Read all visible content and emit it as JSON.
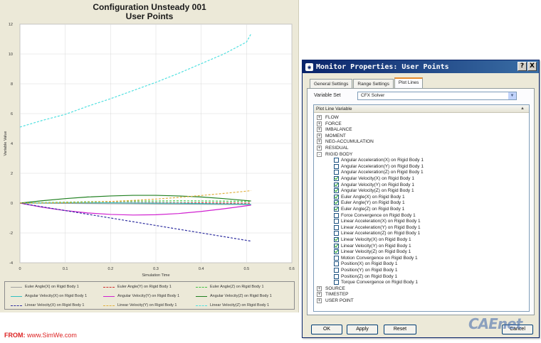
{
  "chart_data": {
    "type": "line",
    "title": "Configuration Unsteady 001",
    "subtitle": "User Points",
    "xlabel": "Simulation Time",
    "ylabel": "Variable Value",
    "xlim": [
      0,
      0.6
    ],
    "ylim": [
      -4,
      12
    ],
    "xticks": [
      "0",
      "0.1",
      "0.2",
      "0.3",
      "0.4",
      "0.5",
      "0.6"
    ],
    "yticks": [
      "-4",
      "-2",
      "0",
      "2",
      "4",
      "6",
      "8",
      "10",
      "12"
    ],
    "x": [
      0,
      0.05,
      0.1,
      0.15,
      0.2,
      0.25,
      0.3,
      0.35,
      0.4,
      0.45,
      0.5,
      0.51
    ],
    "series": [
      {
        "name": "Euler Angle(X) on Rigid Body 1",
        "color": "#a0a0a0",
        "dash": false,
        "values": [
          0,
          -0.01,
          -0.02,
          -0.03,
          -0.04,
          -0.05,
          -0.06,
          -0.07,
          -0.08,
          -0.09,
          -0.1,
          -0.1
        ]
      },
      {
        "name": "Euler Angle(Y) on Rigid Body 1",
        "color": "#d03030",
        "dash": true,
        "values": [
          0,
          0.01,
          0.02,
          0.02,
          0.03,
          0.03,
          0.03,
          0.02,
          0.02,
          0.01,
          0.0,
          0.0
        ]
      },
      {
        "name": "Euler Angle(Z) on Rigid Body 1",
        "color": "#40c040",
        "dash": true,
        "values": [
          0,
          0.03,
          0.06,
          0.09,
          0.11,
          0.13,
          0.14,
          0.15,
          0.14,
          0.13,
          0.12,
          0.12
        ]
      },
      {
        "name": "Angular Velocity(X) on Rigid Body 1",
        "color": "#30c0c0",
        "dash": false,
        "values": [
          0,
          0.01,
          0.02,
          0.02,
          0.02,
          0.01,
          0.0,
          -0.01,
          -0.03,
          -0.05,
          -0.07,
          -0.08
        ]
      },
      {
        "name": "Angular Velocity(Y) on Rigid Body 1",
        "color": "#d020d0",
        "dash": false,
        "values": [
          0,
          -0.28,
          -0.5,
          -0.66,
          -0.76,
          -0.8,
          -0.78,
          -0.7,
          -0.56,
          -0.38,
          -0.18,
          -0.14
        ]
      },
      {
        "name": "Angular Velocity(Z) on Rigid Body 1",
        "color": "#208020",
        "dash": false,
        "values": [
          0,
          0.16,
          0.3,
          0.41,
          0.48,
          0.52,
          0.52,
          0.48,
          0.41,
          0.3,
          0.17,
          0.14
        ]
      },
      {
        "name": "Linear Velocity(X) on Rigid Body 1",
        "color": "#3030a0",
        "dash": true,
        "values": [
          0,
          -0.25,
          -0.5,
          -0.75,
          -1.0,
          -1.25,
          -1.5,
          -1.75,
          -2.0,
          -2.25,
          -2.5,
          -2.55
        ]
      },
      {
        "name": "Linear Velocity(Y) on Rigid Body 1",
        "color": "#e0b040",
        "dash": true,
        "values": [
          0,
          0.01,
          0.03,
          0.06,
          0.11,
          0.18,
          0.27,
          0.38,
          0.51,
          0.65,
          0.8,
          0.84
        ]
      },
      {
        "name": "Linear Velocity(Z) on Rigid Body 1",
        "color": "#50e0e0",
        "dash": true,
        "values": [
          5.1,
          5.55,
          5.95,
          6.5,
          7.0,
          7.55,
          8.1,
          8.7,
          9.35,
          10.0,
          10.8,
          11.35
        ]
      }
    ]
  },
  "source": {
    "prefix": "FROM: ",
    "site": "www.SimWe.com"
  },
  "dialog": {
    "title": "Monitor Properties: User Points",
    "help_label": "?",
    "close_label": "X",
    "tabs": [
      "General Settings",
      "Range Settings",
      "Plot Lines"
    ],
    "variable_set_label": "Variable Set",
    "variable_set_value": "CFX Solver",
    "tree_header": "Plot Line Variable",
    "groups": [
      {
        "label": "FLOW",
        "expander": "+"
      },
      {
        "label": "FORCE",
        "expander": "+"
      },
      {
        "label": "IMBALANCE",
        "expander": "+"
      },
      {
        "label": "MOMENT",
        "expander": "+"
      },
      {
        "label": "NEG-ACCUMULATION",
        "expander": "+"
      },
      {
        "label": "RESIDUAL",
        "expander": "+"
      },
      {
        "label": "RIGID BODY",
        "expander": "-"
      }
    ],
    "rigid_body_items": [
      {
        "label": "Angular Acceleration(X) on Rigid Body 1",
        "checked": false
      },
      {
        "label": "Angular Acceleration(Y) on Rigid Body 1",
        "checked": false
      },
      {
        "label": "Angular Acceleration(Z) on Rigid Body 1",
        "checked": false
      },
      {
        "label": "Angular Velocity(X) on Rigid Body 1",
        "checked": true
      },
      {
        "label": "Angular Velocity(Y) on Rigid Body 1",
        "checked": true
      },
      {
        "label": "Angular Velocity(Z) on Rigid Body 1",
        "checked": true
      },
      {
        "label": "Euler Angle(X) on Rigid Body 1",
        "checked": true
      },
      {
        "label": "Euler Angle(Y) on Rigid Body 1",
        "checked": true
      },
      {
        "label": "Euler Angle(Z) on Rigid Body 1",
        "checked": true
      },
      {
        "label": "Force Convergence on Rigid Body 1",
        "checked": false
      },
      {
        "label": "Linear Acceleration(X) on Rigid Body 1",
        "checked": false
      },
      {
        "label": "Linear Acceleration(Y) on Rigid Body 1",
        "checked": false
      },
      {
        "label": "Linear Acceleration(Z) on Rigid Body 1",
        "checked": false
      },
      {
        "label": "Linear Velocity(X) on Rigid Body 1",
        "checked": true
      },
      {
        "label": "Linear Velocity(Y) on Rigid Body 1",
        "checked": true
      },
      {
        "label": "Linear Velocity(Z) on Rigid Body 1",
        "checked": true
      },
      {
        "label": "Motion Convergence on Rigid Body 1",
        "checked": false
      },
      {
        "label": "Position(X) on Rigid Body 1",
        "checked": false
      },
      {
        "label": "Position(Y) on Rigid Body 1",
        "checked": false
      },
      {
        "label": "Position(Z) on Rigid Body 1",
        "checked": false
      },
      {
        "label": "Torque Convergence on Rigid Body 1",
        "checked": false
      }
    ],
    "trailing_groups": [
      {
        "label": "SOURCE",
        "expander": "+"
      },
      {
        "label": "TIMESTEP",
        "expander": "+"
      },
      {
        "label": "USER POINT",
        "expander": "+"
      }
    ],
    "buttons": {
      "ok": "OK",
      "apply": "Apply",
      "reset": "Reset",
      "cancel": "Cancel"
    }
  },
  "watermark": "CAEnet"
}
